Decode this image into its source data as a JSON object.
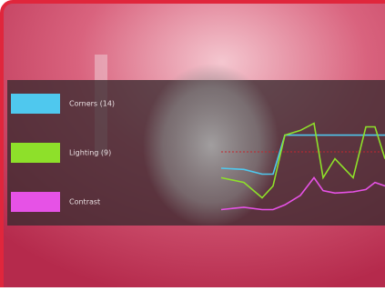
{
  "chart_data": {
    "type": "line",
    "x": [
      0,
      25,
      45,
      57,
      70,
      87,
      102,
      112,
      125,
      145,
      159,
      169,
      180
    ],
    "xlim": [
      0,
      180
    ],
    "ylim": [
      0,
      100
    ],
    "series": [
      {
        "name": "Corners (14)",
        "color": "#4fc8ee",
        "values": [
          50,
          49,
          45,
          45,
          78,
          78,
          78,
          78,
          78,
          78,
          78,
          78,
          78
        ]
      },
      {
        "name": "Lighting (9)",
        "color": "#8ee02a",
        "values": [
          42,
          38,
          25,
          35,
          78,
          82,
          88,
          42,
          58,
          42,
          85,
          85,
          58
        ]
      },
      {
        "name": "Contrast",
        "color": "#e652e6",
        "values": [
          15,
          17,
          15,
          15,
          19,
          27,
          42,
          31,
          29,
          30,
          32,
          38,
          35
        ]
      }
    ]
  }
}
